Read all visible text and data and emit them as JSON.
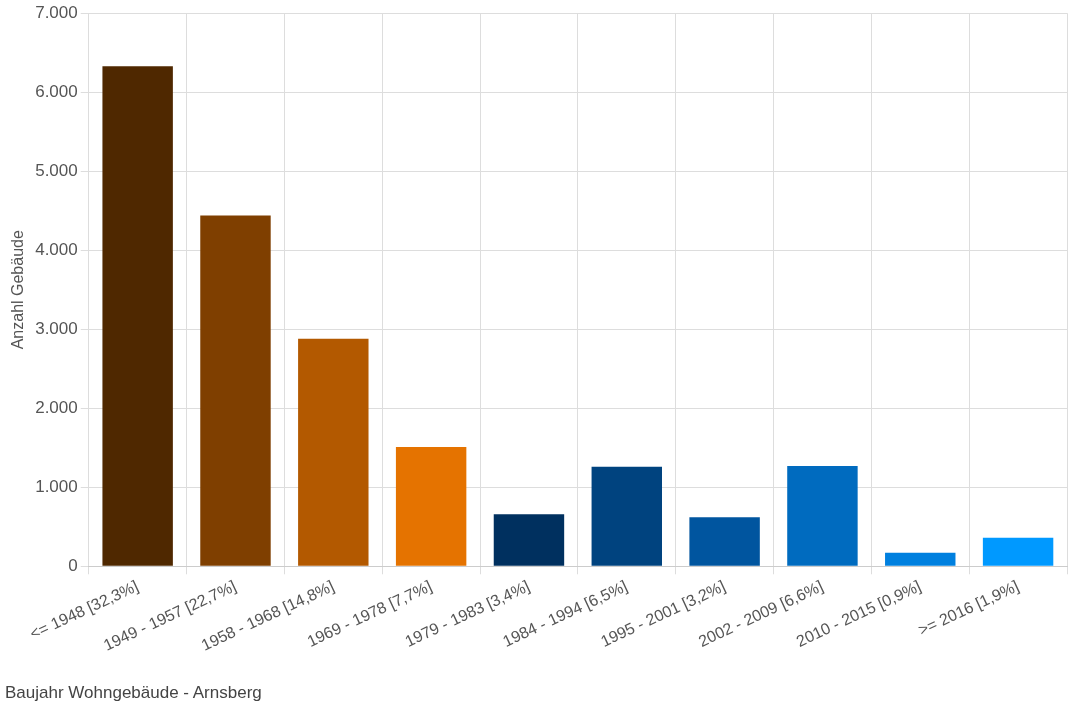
{
  "chart_data": {
    "type": "bar",
    "title": "Baujahr Wohngebäude - Arnsberg",
    "ylabel": "Anzahl Gebäude",
    "categories": [
      "<= 1948 [32,3%]",
      "1949 - 1957 [22,7%]",
      "1958 - 1968 [14,8%]",
      "1969 - 1978 [7,7%]",
      "1979 - 1983 [3,4%]",
      "1984 - 1994 [6,5%]",
      "1995 - 2001 [3,2%]",
      "2002 - 2009 [6,6%]",
      "2010 - 2015 [0,9%]",
      ">= 2016 [1,9%]"
    ],
    "values": [
      6330,
      4440,
      2880,
      1510,
      660,
      1260,
      620,
      1270,
      170,
      360
    ],
    "colors": [
      "#4f2800",
      "#7f3f00",
      "#b35900",
      "#e57300",
      "#00305f",
      "#00437f",
      "#00559f",
      "#006bbf",
      "#0080df",
      "#0099ff"
    ],
    "ylim": [
      0,
      7000
    ],
    "yticks": [
      {
        "value": 0,
        "label": "0"
      },
      {
        "value": 1000,
        "label": "1.000"
      },
      {
        "value": 2000,
        "label": "2.000"
      },
      {
        "value": 3000,
        "label": "3.000"
      },
      {
        "value": 4000,
        "label": "4.000"
      },
      {
        "value": 5000,
        "label": "5.000"
      },
      {
        "value": 6000,
        "label": "6.000"
      },
      {
        "value": 7000,
        "label": "7.000"
      }
    ],
    "grid": true
  }
}
